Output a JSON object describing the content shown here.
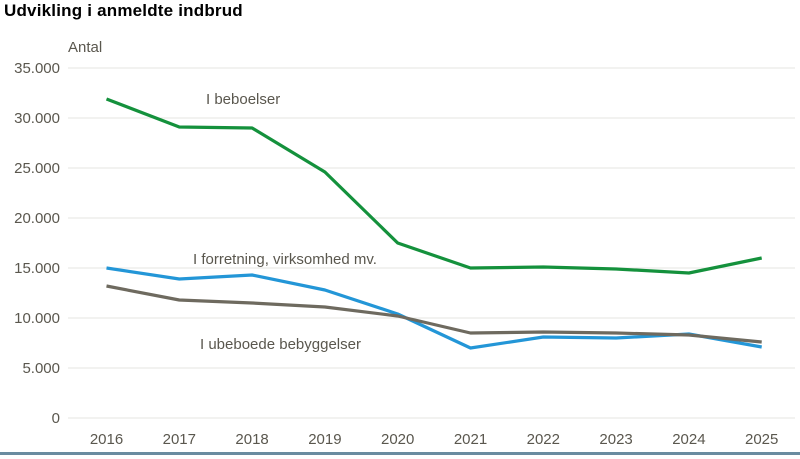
{
  "page": {
    "title": "Udvikling i anmeldte indbrud",
    "accent_bar_color": "#6a8ca0",
    "background_color": "#ffffff"
  },
  "chart_data": {
    "type": "line",
    "title": "Udvikling i anmeldte indbrud",
    "ylabel": "Antal",
    "xlabel": "",
    "categories": [
      "2016",
      "2017",
      "2018",
      "2019",
      "2020",
      "2021",
      "2022",
      "2023",
      "2024",
      "2025"
    ],
    "ylim": [
      0,
      35000
    ],
    "ytick_step": 5000,
    "ytick_labels": [
      "0",
      "5.000",
      "10.000",
      "15.000",
      "20.000",
      "25.000",
      "30.000",
      "35.000"
    ],
    "grid": "horizontal",
    "legend_position": "inline-labels-next-to-lines",
    "series": [
      {
        "name": "I beboelser",
        "color": "#14913c",
        "values": [
          31900,
          29100,
          29000,
          24600,
          17500,
          15000,
          15100,
          14900,
          14500,
          16000
        ],
        "label_pos": {
          "x": 206,
          "y": 104
        }
      },
      {
        "name": "I forretning, virksomhed mv.",
        "color": "#2396d7",
        "values": [
          15000,
          13900,
          14300,
          12800,
          10400,
          7000,
          8100,
          8000,
          8400,
          7100
        ],
        "label_pos": {
          "x": 193,
          "y": 264
        }
      },
      {
        "name": "I ubeboede bebyggelser",
        "color": "#6e6a5f",
        "values": [
          13200,
          11800,
          11500,
          11100,
          10200,
          8500,
          8600,
          8500,
          8300,
          7600
        ],
        "label_pos": {
          "x": 200,
          "y": 349
        }
      }
    ],
    "colors": {
      "grid": "#e4e4e2",
      "axis_text": "#5a574e",
      "series_label_text": "#5a574e"
    }
  }
}
